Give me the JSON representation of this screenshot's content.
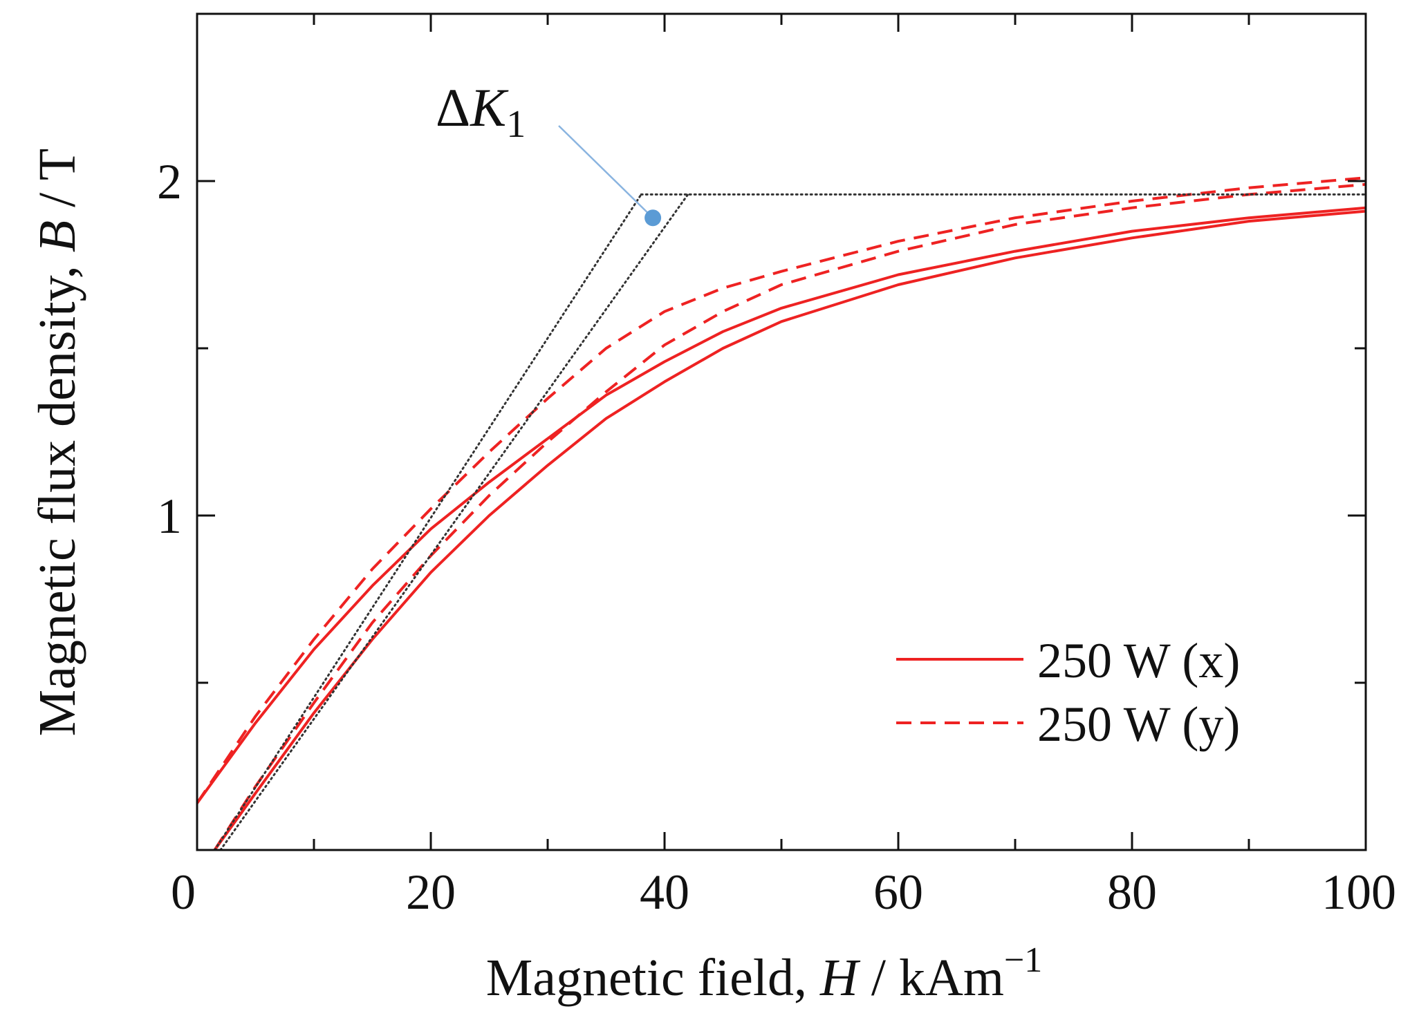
{
  "chart_data": {
    "type": "line",
    "title": "",
    "xlabel": {
      "text": "Magnetic field, ",
      "var": "H",
      "unit": " / kAm",
      "unit_sup": "−1"
    },
    "ylabel": {
      "text": "Magnetic flux density, ",
      "var": "B",
      "unit": " / T"
    },
    "xlim": [
      0,
      100
    ],
    "ylim": [
      0,
      2.5
    ],
    "x_ticks": [
      0,
      20,
      40,
      60,
      80,
      100
    ],
    "x_tick_labels": [
      "0",
      "20",
      "40",
      "60",
      "80",
      "100"
    ],
    "x_minor_ticks": [
      10,
      30,
      50,
      70,
      90
    ],
    "y_ticks": [
      1,
      2
    ],
    "y_tick_labels": [
      "1",
      "2"
    ],
    "y_minor_ticks": [
      0.5,
      1.5
    ],
    "grid": false,
    "legend": {
      "placement": "bottom-right",
      "entries": [
        {
          "label": "250 W (x)",
          "style": "solid",
          "color": "#ee2222"
        },
        {
          "label": "250 W (y)",
          "style": "dashed",
          "color": "#ee2222"
        }
      ]
    },
    "annotation": {
      "label_prefix": "Δ",
      "label_var": "K",
      "label_sub": "1",
      "marker_color": "#5b9bd5",
      "marker_point": [
        39,
        1.89
      ]
    },
    "series": [
      {
        "name": "250 W (x) upper branch",
        "style": "solid",
        "color": "#ee2222",
        "points": [
          [
            0,
            0.14
          ],
          [
            5,
            0.38
          ],
          [
            10,
            0.6
          ],
          [
            15,
            0.79
          ],
          [
            20,
            0.96
          ],
          [
            25,
            1.1
          ],
          [
            30,
            1.23
          ],
          [
            35,
            1.36
          ],
          [
            40,
            1.46
          ],
          [
            45,
            1.55
          ],
          [
            50,
            1.62
          ],
          [
            60,
            1.72
          ],
          [
            70,
            1.79
          ],
          [
            80,
            1.85
          ],
          [
            90,
            1.89
          ],
          [
            100,
            1.92
          ]
        ]
      },
      {
        "name": "250 W (x) lower branch",
        "style": "solid",
        "color": "#ee2222",
        "points": [
          [
            1.5,
            0
          ],
          [
            5,
            0.17
          ],
          [
            10,
            0.41
          ],
          [
            15,
            0.63
          ],
          [
            20,
            0.83
          ],
          [
            25,
            1.0
          ],
          [
            30,
            1.15
          ],
          [
            35,
            1.29
          ],
          [
            40,
            1.4
          ],
          [
            45,
            1.5
          ],
          [
            50,
            1.58
          ],
          [
            60,
            1.69
          ],
          [
            70,
            1.77
          ],
          [
            80,
            1.83
          ],
          [
            90,
            1.88
          ],
          [
            100,
            1.91
          ]
        ]
      },
      {
        "name": "250 W (y) upper branch",
        "style": "dashed",
        "color": "#ee2222",
        "points": [
          [
            0,
            0.14
          ],
          [
            5,
            0.4
          ],
          [
            10,
            0.63
          ],
          [
            15,
            0.84
          ],
          [
            20,
            1.02
          ],
          [
            25,
            1.19
          ],
          [
            30,
            1.35
          ],
          [
            35,
            1.5
          ],
          [
            40,
            1.61
          ],
          [
            45,
            1.68
          ],
          [
            50,
            1.73
          ],
          [
            60,
            1.82
          ],
          [
            70,
            1.89
          ],
          [
            80,
            1.94
          ],
          [
            90,
            1.98
          ],
          [
            100,
            2.01
          ]
        ]
      },
      {
        "name": "250 W (y) lower branch",
        "style": "dashed",
        "color": "#ee2222",
        "points": [
          [
            1.5,
            0
          ],
          [
            5,
            0.19
          ],
          [
            10,
            0.44
          ],
          [
            15,
            0.68
          ],
          [
            20,
            0.88
          ],
          [
            25,
            1.06
          ],
          [
            30,
            1.22
          ],
          [
            35,
            1.37
          ],
          [
            40,
            1.51
          ],
          [
            45,
            1.61
          ],
          [
            50,
            1.69
          ],
          [
            60,
            1.79
          ],
          [
            70,
            1.87
          ],
          [
            80,
            1.92
          ],
          [
            90,
            1.96
          ],
          [
            100,
            1.99
          ]
        ]
      },
      {
        "name": "guide line 1",
        "style": "dotted",
        "color": "#333333",
        "points": [
          [
            1.5,
            0
          ],
          [
            38,
            1.96
          ]
        ]
      },
      {
        "name": "guide line 2",
        "style": "dotted",
        "color": "#333333",
        "points": [
          [
            2,
            0
          ],
          [
            42,
            1.96
          ]
        ]
      },
      {
        "name": "guide saturation line",
        "style": "dotted",
        "color": "#333333",
        "points": [
          [
            38,
            1.96
          ],
          [
            100,
            1.96
          ]
        ]
      }
    ]
  }
}
